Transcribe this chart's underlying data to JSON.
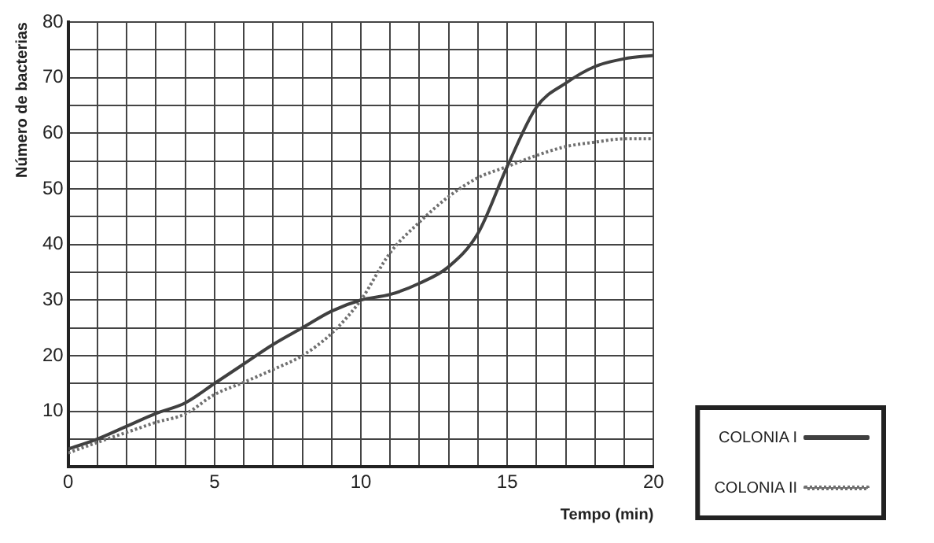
{
  "chart_data": {
    "type": "line",
    "xlabel": "Tempo (min)",
    "ylabel": "Número de bacterias",
    "x": [
      0,
      1,
      2,
      3,
      4,
      5,
      6,
      7,
      8,
      9,
      10,
      11,
      12,
      13,
      14,
      15,
      16,
      17,
      18,
      19,
      20
    ],
    "series": [
      {
        "name": "COLONIA I",
        "color": "#404040",
        "line_style": "solid",
        "values": [
          3.2,
          5,
          7.3,
          9.6,
          11.5,
          15,
          18.5,
          22,
          25,
          28,
          30,
          31,
          33,
          36,
          42,
          54,
          64.7,
          69,
          72,
          73.4,
          74
        ]
      },
      {
        "name": "COLONIA II",
        "color": "#707070",
        "line_style": "dotted",
        "values": [
          2.5,
          4.4,
          6.2,
          8,
          9.5,
          13,
          15.2,
          17.5,
          20,
          24,
          30,
          38.5,
          44,
          48.6,
          52,
          54,
          56,
          57.6,
          58.4,
          59,
          59
        ]
      }
    ],
    "xlim": [
      0,
      20
    ],
    "ylim": [
      0,
      80
    ],
    "xticks": [
      0,
      {
        "value": 1,
        "label": null
      },
      {
        "value": 2,
        "label": null
      },
      {
        "value": 3,
        "label": null
      },
      {
        "value": 4,
        "label": null
      },
      5,
      {
        "value": 6,
        "label": null
      },
      {
        "value": 7,
        "label": null
      },
      {
        "value": 8,
        "label": null
      },
      {
        "value": 9,
        "label": null
      },
      10,
      {
        "value": 11,
        "label": null
      },
      {
        "value": 12,
        "label": null
      },
      {
        "value": 13,
        "label": null
      },
      {
        "value": 14,
        "label": null
      },
      15,
      {
        "value": 16,
        "label": null
      },
      {
        "value": 17,
        "label": null
      },
      {
        "value": 18,
        "label": null
      },
      {
        "value": 19,
        "label": null
      },
      20
    ],
    "yticks": [
      {
        "value": 0,
        "label": null
      },
      {
        "value": 5,
        "label": null
      },
      10,
      {
        "value": 15,
        "label": null
      },
      20,
      {
        "value": 25,
        "label": null
      },
      30,
      {
        "value": 35,
        "label": null
      },
      40,
      {
        "value": 45,
        "label": null
      },
      50,
      {
        "value": 55,
        "label": null
      },
      60,
      {
        "value": 65,
        "label": null
      },
      70,
      {
        "value": 75,
        "label": null
      },
      80
    ],
    "grid": true,
    "legend": "right",
    "marker": "none"
  }
}
